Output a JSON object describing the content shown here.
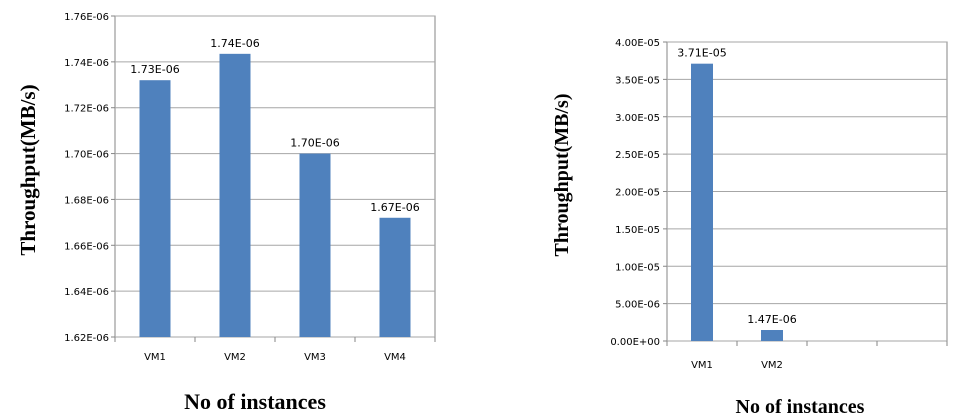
{
  "colors": {
    "bar": "#4f81bd",
    "grid": "#a6a6a6",
    "axis": "#868686"
  },
  "chart_data": [
    {
      "type": "bar",
      "categories": [
        "VM1",
        "VM2",
        "VM3",
        "VM4"
      ],
      "values": [
        1.732e-06,
        1.7435e-06,
        1.7e-06,
        1.672e-06
      ],
      "data_labels": [
        "1.73E-06",
        "1.74E-06",
        "1.70E-06",
        "1.67E-06"
      ],
      "ylim": [
        1.62e-06,
        1.76e-06
      ],
      "yticks": [
        1.62e-06,
        1.64e-06,
        1.66e-06,
        1.68e-06,
        1.7e-06,
        1.72e-06,
        1.74e-06,
        1.76e-06
      ],
      "ytick_labels": [
        "1.62E-06",
        "1.64E-06",
        "1.66E-06",
        "1.68E-06",
        "1.70E-06",
        "1.72E-06",
        "1.74E-06",
        "1.76E-06"
      ],
      "xlabel": "No of instances",
      "ylabel": "Throughput(MB/s)",
      "grid": true,
      "legend": "none"
    },
    {
      "type": "bar",
      "categories": [
        "VM1",
        "VM2",
        "",
        ""
      ],
      "values": [
        3.71e-05,
        1.47e-06,
        null,
        null
      ],
      "data_labels": [
        "3.71E-05",
        "1.47E-06",
        "",
        ""
      ],
      "ylim": [
        0,
        4e-05
      ],
      "yticks": [
        0,
        5e-06,
        1e-05,
        1.5e-05,
        2e-05,
        2.5e-05,
        3e-05,
        3.5e-05,
        4e-05
      ],
      "ytick_labels": [
        "0.00E+00",
        "5.00E-06",
        "1.00E-05",
        "1.50E-05",
        "2.00E-05",
        "2.50E-05",
        "3.00E-05",
        "3.50E-05",
        "4.00E-05"
      ],
      "xlabel": "No of instances",
      "ylabel": "Throughput(MB/s)",
      "grid": true,
      "legend": "none"
    }
  ]
}
